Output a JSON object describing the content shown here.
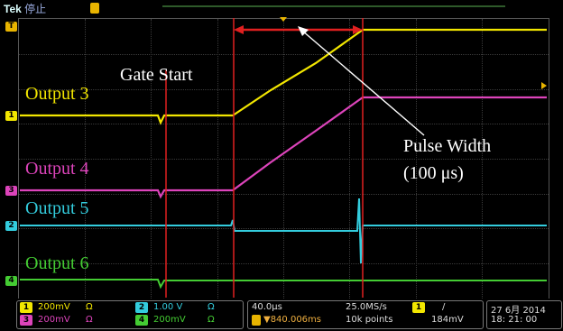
{
  "topbar": {
    "brand": "Tek",
    "state": "停止"
  },
  "plot_labels": {
    "output3": "Output 3",
    "output4": "Output 4",
    "output5": "Output 5",
    "output6": "Output 6",
    "gate_start": "Gate Start",
    "pulse_width": "Pulse Width",
    "pulse_width_value": "(100 μs)"
  },
  "channels": [
    {
      "num": "1",
      "color": "#f2e600",
      "scale": "200mV",
      "unit_icon": "Ω"
    },
    {
      "num": "2",
      "color": "#33ccdd",
      "scale": "1.00 V",
      "unit_icon": "Ω"
    },
    {
      "num": "3",
      "color": "#dd44bb",
      "scale": "200mV",
      "unit_icon": "Ω"
    },
    {
      "num": "4",
      "color": "#44cc33",
      "scale": "200mV",
      "unit_icon": "Ω"
    }
  ],
  "markers": {
    "trigger": "T",
    "ch1": "1",
    "ch3": "3",
    "ch2": "2",
    "ch4": "4"
  },
  "timebase": {
    "per_div": "40.0μs",
    "delay": "▼840.006ms",
    "sample_rate": "25.0MS/s",
    "record": "10k points"
  },
  "trigger": {
    "source": "1",
    "slope": "/",
    "level": "184mV"
  },
  "datetime": {
    "date": "27 6月 2014",
    "time": "18: 21: 00"
  },
  "colors": {
    "cursor_red": "#e02020",
    "grid": "#3a3a3a",
    "trigger_orange": "#e8b400"
  }
}
